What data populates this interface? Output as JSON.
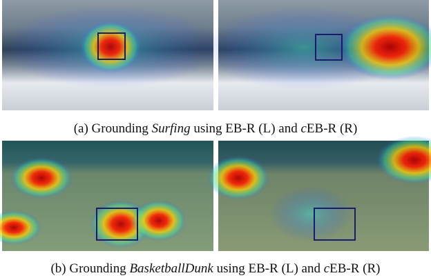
{
  "captions": [
    {
      "segments": [
        {
          "text": "(a) Grounding ",
          "italic": false
        },
        {
          "text": "Surfing",
          "italic": true
        },
        {
          "text": " using EB-R (L) and ",
          "italic": false
        },
        {
          "text": "c",
          "italic": true
        },
        {
          "text": "EB-R (R)",
          "italic": false
        }
      ]
    },
    {
      "segments": [
        {
          "text": "(b) Grounding ",
          "italic": false
        },
        {
          "text": "BasketballDunk",
          "italic": true
        },
        {
          "text": " using EB-R (L) and ",
          "italic": false
        },
        {
          "text": "c",
          "italic": true
        },
        {
          "text": "EB-R (R)",
          "italic": false
        }
      ]
    }
  ]
}
